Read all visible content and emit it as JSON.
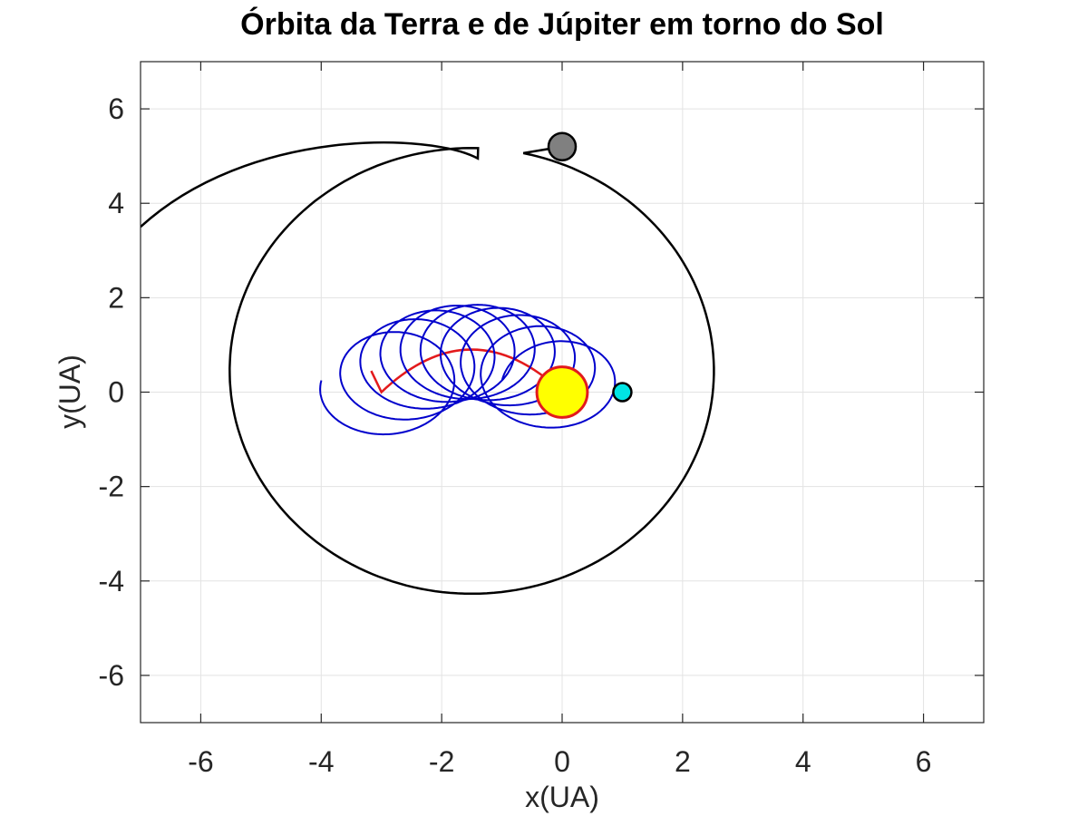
{
  "chart_data": {
    "type": "line",
    "title": "Órbita da Terra e de Júpiter em torno do Sol",
    "xlabel": "x(UA)",
    "ylabel": "y(UA)",
    "xlim": [
      -7,
      7
    ],
    "ylim": [
      -7,
      7
    ],
    "xticks": [
      -6,
      -4,
      -2,
      0,
      2,
      4,
      6
    ],
    "yticks": [
      -6,
      -4,
      -2,
      0,
      2,
      4,
      6
    ],
    "grid": true,
    "colors": {
      "jupiter_orbit": "#000000",
      "earth_orbit": "#0000cc",
      "sun_path": "#e31a1c",
      "sun_fill": "#ffff00",
      "sun_edge": "#e31a1c",
      "earth_fill": "#00e5e5",
      "jupiter_fill": "#808080"
    },
    "jupiter_orbit": {
      "center": [
        -1.5,
        0.45
      ],
      "rx": 4.02,
      "ry": 4.72,
      "tail_end": [
        -7.0,
        3.5
      ]
    },
    "sun_path": {
      "start": [
        -3.0,
        0.0
      ],
      "apex": [
        -1.5,
        0.95
      ],
      "end": [
        0.0,
        0.0
      ]
    },
    "earth_loops": {
      "radius": 1.03,
      "center_start": [
        -3.0,
        0.0
      ],
      "center_end": [
        0.0,
        0.0
      ],
      "loop_count": 9
    },
    "sun": {
      "x": 0.0,
      "y": 0.0,
      "radius": 0.42
    },
    "earth": {
      "x": 1.0,
      "y": 0.0
    },
    "jupiter": {
      "x": 0.0,
      "y": 5.2
    }
  }
}
